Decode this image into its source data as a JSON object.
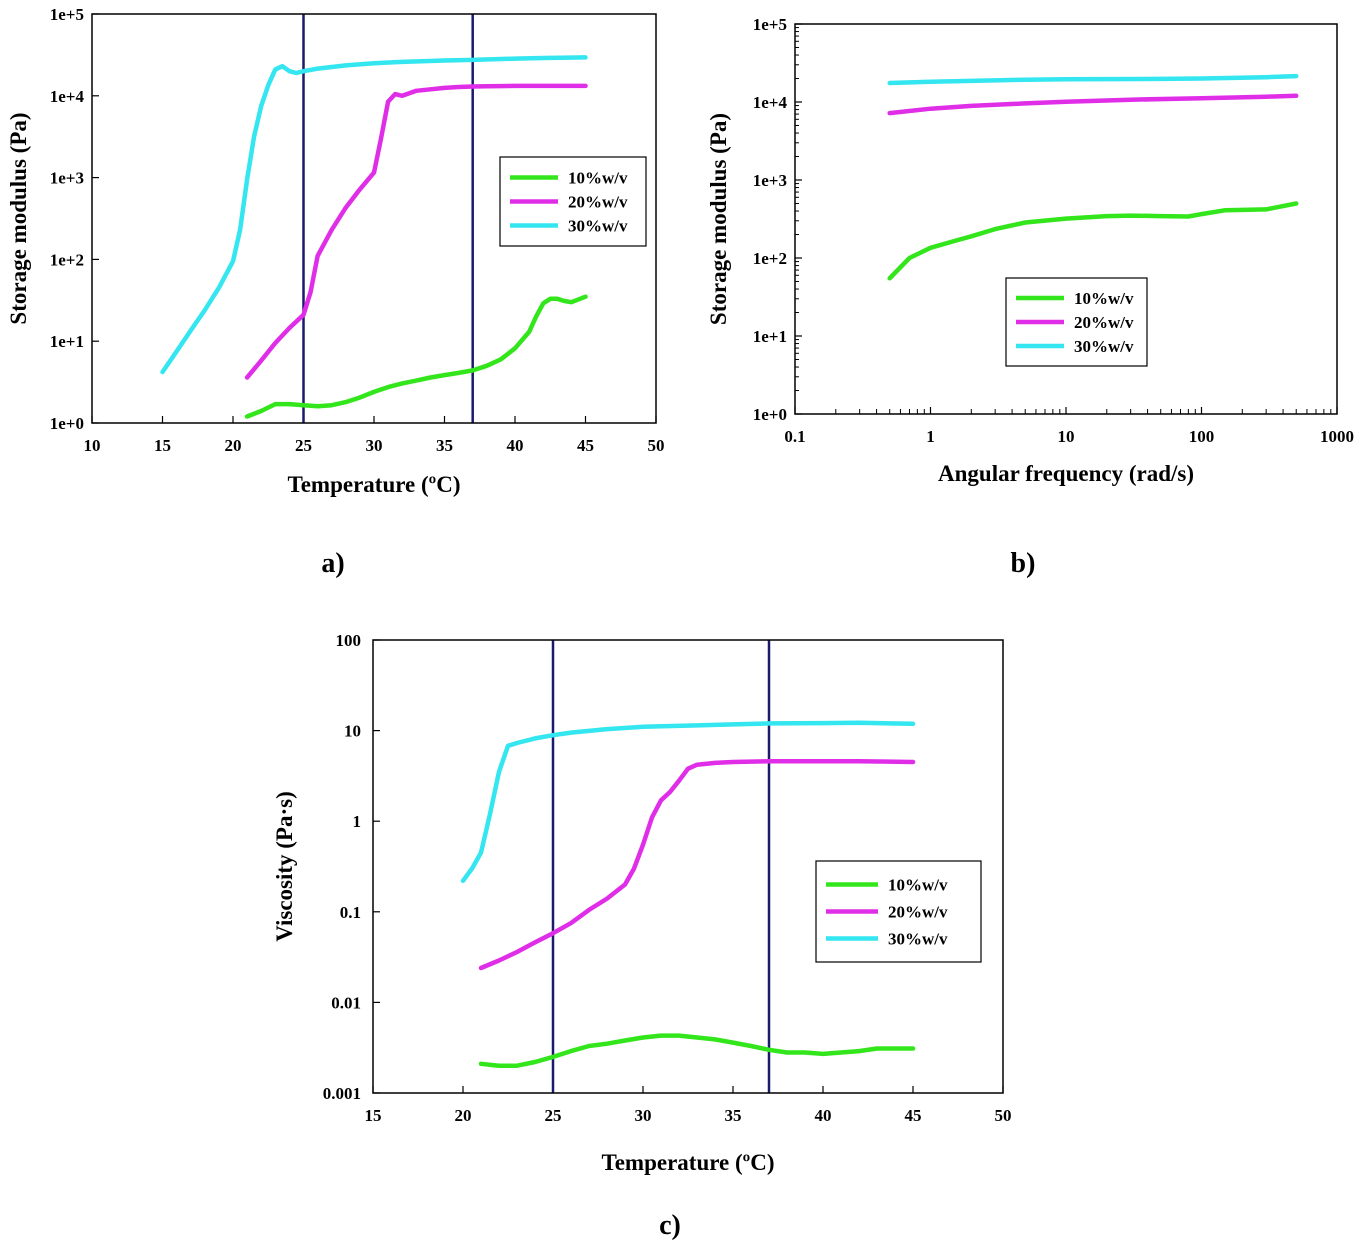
{
  "colors": {
    "c10": "#33e61c",
    "c20": "#e02ee8",
    "c30": "#33e6f0",
    "marker": "#1a1a6e",
    "frame": "#000000"
  },
  "chart_data": [
    {
      "id": "a",
      "panel_label": "a)",
      "type": "line",
      "xlabel": "Temperature (ºC)",
      "ylabel": "Storage  modulus (Pa)",
      "xscale": "linear",
      "yscale": "log",
      "xlim": [
        10,
        50
      ],
      "ylim": [
        1,
        100000
      ],
      "xticks": [
        10,
        15,
        20,
        25,
        30,
        35,
        40,
        45,
        50
      ],
      "xtick_labels": [
        "10",
        "15",
        "20",
        "25",
        "30",
        "35",
        "40",
        "45",
        "50"
      ],
      "yticks": [
        1,
        10,
        100,
        1000,
        10000,
        100000
      ],
      "ytick_labels": [
        "1e+0",
        "1e+1",
        "1e+2",
        "1e+3",
        "1e+4",
        "1e+5"
      ],
      "vlines": [
        25,
        37
      ],
      "legend_position": "center-right",
      "series": [
        {
          "name": "10%w/v",
          "color_key": "c10",
          "x": [
            21,
            22,
            23,
            24,
            25,
            26,
            27,
            28,
            29,
            30,
            31,
            32,
            33,
            34,
            35,
            36,
            37,
            38,
            39,
            40,
            41,
            41.5,
            42,
            42.5,
            43,
            43.5,
            44,
            45
          ],
          "y": [
            1.2,
            1.4,
            1.7,
            1.7,
            1.65,
            1.6,
            1.65,
            1.8,
            2.05,
            2.4,
            2.75,
            3.05,
            3.3,
            3.6,
            3.85,
            4.1,
            4.4,
            5.0,
            6.0,
            8.2,
            13,
            20,
            29,
            33,
            33,
            31,
            30,
            35
          ]
        },
        {
          "name": "20%w/v",
          "color_key": "c20",
          "x": [
            21,
            22,
            23,
            24,
            25,
            25.5,
            26,
            27,
            28,
            29,
            30,
            30.5,
            31,
            31.5,
            32,
            33,
            34,
            35,
            36,
            37,
            38,
            40,
            42,
            45
          ],
          "y": [
            3.6,
            5.8,
            9.5,
            14.5,
            21,
            40,
            110,
            230,
            430,
            720,
            1150,
            3000,
            8500,
            10500,
            10000,
            11500,
            12000,
            12500,
            12800,
            13000,
            13100,
            13200,
            13200,
            13200
          ]
        },
        {
          "name": "30%w/v",
          "color_key": "c30",
          "x": [
            15,
            16,
            17,
            18,
            19,
            20,
            20.5,
            21,
            21.5,
            22,
            22.5,
            23,
            23.5,
            24,
            24.5,
            25,
            26,
            28,
            30,
            32,
            35,
            37,
            40,
            42,
            45
          ],
          "y": [
            4.2,
            7.5,
            13.5,
            24,
            45,
            95,
            230,
            950,
            3200,
            7500,
            13500,
            21000,
            23000,
            20000,
            19000,
            20000,
            21500,
            23500,
            25000,
            26000,
            27000,
            27500,
            28500,
            29000,
            29500
          ]
        }
      ]
    },
    {
      "id": "b",
      "panel_label": "b)",
      "type": "line",
      "xlabel": "Angular frequency (rad/s)",
      "ylabel": "Storage modulus (Pa)",
      "xscale": "log",
      "yscale": "log",
      "xlim": [
        0.1,
        1000
      ],
      "ylim": [
        1,
        100000
      ],
      "xticks": [
        0.1,
        1,
        10,
        100,
        1000
      ],
      "xtick_labels": [
        "0.1",
        "1",
        "10",
        "100",
        "1000"
      ],
      "yticks": [
        1,
        10,
        100,
        1000,
        10000,
        100000
      ],
      "ytick_labels": [
        "1e+0",
        "1e+1",
        "1e+2",
        "1e+3",
        "1e+4",
        "1e+5"
      ],
      "vlines": [],
      "legend_position": "center-left",
      "series": [
        {
          "name": "10%w/v",
          "color_key": "c10",
          "x": [
            0.5,
            0.7,
            1,
            1.5,
            2,
            3,
            5,
            10,
            20,
            30,
            50,
            80,
            100,
            150,
            300,
            500
          ],
          "y": [
            55,
            100,
            135,
            165,
            190,
            235,
            285,
            320,
            345,
            350,
            345,
            340,
            365,
            410,
            420,
            500
          ]
        },
        {
          "name": "20%w/v",
          "color_key": "c20",
          "x": [
            0.5,
            1,
            2,
            5,
            10,
            30,
            100,
            300,
            500
          ],
          "y": [
            7200,
            8200,
            8900,
            9600,
            10100,
            10700,
            11200,
            11700,
            12000
          ]
        },
        {
          "name": "30%w/v",
          "color_key": "c30",
          "x": [
            0.5,
            1,
            5,
            10,
            50,
            100,
            300,
            500
          ],
          "y": [
            17500,
            18200,
            19300,
            19600,
            19800,
            20000,
            20800,
            21500
          ]
        }
      ]
    },
    {
      "id": "c",
      "panel_label": "c)",
      "type": "line",
      "xlabel": "Temperature (ºC)",
      "ylabel": "Viscosity (Pa·s)",
      "xscale": "linear",
      "yscale": "log",
      "xlim": [
        15,
        50
      ],
      "ylim": [
        0.001,
        100
      ],
      "xticks": [
        15,
        20,
        25,
        30,
        35,
        40,
        45,
        50
      ],
      "xtick_labels": [
        "15",
        "20",
        "25",
        "30",
        "35",
        "40",
        "45",
        "50"
      ],
      "yticks": [
        0.001,
        0.01,
        0.1,
        1,
        10,
        100
      ],
      "ytick_labels": [
        "0.001",
        "0.01",
        "0.1",
        "1",
        "10",
        "100"
      ],
      "vlines": [
        25,
        37
      ],
      "legend_position": "center-right",
      "series": [
        {
          "name": "10%w/v",
          "color_key": "c10",
          "x": [
            21,
            22,
            23,
            24,
            25,
            26,
            27,
            28,
            29,
            30,
            31,
            32,
            33,
            34,
            35,
            36,
            37,
            38,
            39,
            40,
            41,
            42,
            43,
            44,
            45
          ],
          "y": [
            0.0021,
            0.002,
            0.002,
            0.0022,
            0.0025,
            0.0029,
            0.0033,
            0.0035,
            0.0038,
            0.0041,
            0.0043,
            0.0043,
            0.0041,
            0.0039,
            0.0036,
            0.0033,
            0.003,
            0.0028,
            0.0028,
            0.0027,
            0.0028,
            0.0029,
            0.0031,
            0.0031,
            0.0031
          ]
        },
        {
          "name": "20%w/v",
          "color_key": "c20",
          "x": [
            21,
            22,
            23,
            24,
            25,
            26,
            27,
            28,
            29,
            29.5,
            30,
            30.5,
            31,
            31.5,
            32,
            32.5,
            33,
            34,
            35,
            37,
            40,
            42,
            45
          ],
          "y": [
            0.024,
            0.029,
            0.036,
            0.046,
            0.058,
            0.075,
            0.105,
            0.14,
            0.2,
            0.3,
            0.55,
            1.1,
            1.7,
            2.1,
            2.8,
            3.8,
            4.2,
            4.4,
            4.5,
            4.6,
            4.6,
            4.6,
            4.5
          ]
        },
        {
          "name": "30%w/v",
          "color_key": "c30",
          "x": [
            20,
            20.5,
            21,
            21.5,
            22,
            22.5,
            23,
            24,
            25,
            26,
            28,
            30,
            33,
            35,
            37,
            40,
            42,
            45
          ],
          "y": [
            0.22,
            0.3,
            0.45,
            1.2,
            3.5,
            6.8,
            7.3,
            8.2,
            8.9,
            9.5,
            10.4,
            11,
            11.4,
            11.7,
            12,
            12.1,
            12.2,
            11.9
          ]
        }
      ]
    }
  ]
}
